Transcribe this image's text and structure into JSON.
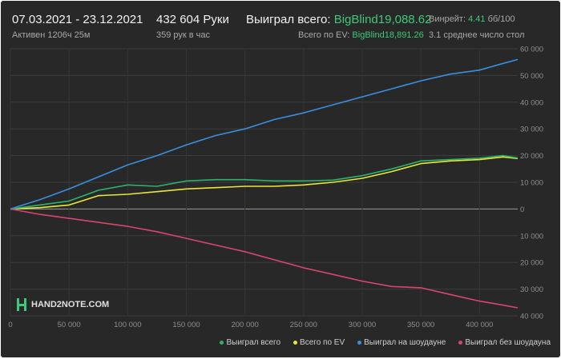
{
  "header": {
    "date_range": "07.03.2021 - 23.12.2021",
    "active": "Активен 1206ч 25м",
    "hands": "432 604 Руки",
    "hands_rate": "359 рук в час",
    "won_label": "Выиграл всего:",
    "won_value": "BigBlind19,088.62",
    "ev_label": "Всего по EV:",
    "ev_value": "BigBlind18,891.26",
    "winrate_label": "Винрейт:",
    "winrate_value": "4.41",
    "winrate_unit": "бб/100",
    "avg_tables": "3.1 среднее число стол"
  },
  "logo": {
    "text": "HAND2NOTE.COM"
  },
  "colors": {
    "background": "#282828",
    "won_total": "#2bb36b",
    "ev_total": "#e8e83a",
    "showdown": "#3a8fe0",
    "non_showdown": "#d9456e",
    "accent_green": "#3ec97a"
  },
  "chart_data": {
    "type": "line",
    "xlim": [
      0,
      432604
    ],
    "ylim": [
      -40000,
      60000
    ],
    "y_ticks": [
      60000,
      50000,
      40000,
      30000,
      20000,
      10000,
      0,
      -10000,
      -20000,
      -30000,
      -40000
    ],
    "y_tick_labels": [
      "60 000",
      "50 000",
      "40 000",
      "30 000",
      "20 000",
      "10 000",
      "0",
      "10 000",
      "20 000",
      "30 000",
      "40 000"
    ],
    "x_ticks": [
      0,
      50000,
      100000,
      150000,
      200000,
      250000,
      300000,
      350000,
      400000
    ],
    "x_tick_labels": [
      "0",
      "50 000",
      "100 000",
      "150 000",
      "200 000",
      "250 000",
      "300 000",
      "350 000",
      "400 000"
    ],
    "grid": true,
    "legend_position": "bottom-right",
    "x": [
      0,
      25000,
      50000,
      75000,
      100000,
      125000,
      150000,
      175000,
      200000,
      225000,
      250000,
      275000,
      300000,
      325000,
      350000,
      375000,
      400000,
      420000,
      432604
    ],
    "series": [
      {
        "name": "Выиграл всего",
        "color": "#2bb36b",
        "values": [
          0,
          1500,
          3000,
          7000,
          9000,
          8500,
          10500,
          11000,
          11000,
          10500,
          10500,
          10800,
          12500,
          15000,
          18000,
          18500,
          19000,
          20000,
          19088
        ]
      },
      {
        "name": "Всего по EV",
        "color": "#e8e83a",
        "values": [
          0,
          500,
          1500,
          5000,
          5500,
          6500,
          7500,
          8000,
          8500,
          8500,
          9000,
          10000,
          11500,
          14000,
          17000,
          18000,
          18500,
          19500,
          18891
        ]
      },
      {
        "name": "Выиграл на шоудауне",
        "color": "#3a8fe0",
        "values": [
          0,
          3500,
          7500,
          12000,
          16500,
          20000,
          24000,
          27500,
          30000,
          33500,
          36000,
          39000,
          42000,
          45000,
          48000,
          50500,
          52000,
          54500,
          56000
        ]
      },
      {
        "name": "Выиграл без шоудауна",
        "color": "#d9456e",
        "values": [
          0,
          -2000,
          -3500,
          -5000,
          -6500,
          -8500,
          -11000,
          -13500,
          -16000,
          -19000,
          -22000,
          -24500,
          -27000,
          -29000,
          -29500,
          -32000,
          -34500,
          -36000,
          -37000
        ]
      }
    ]
  }
}
